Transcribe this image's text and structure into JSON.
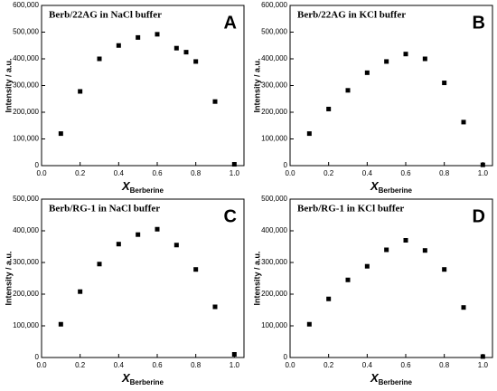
{
  "chart_data": [
    {
      "type": "scatter",
      "title": "Berb/22AG in NaCl buffer",
      "panel": "A",
      "xlabel": "X",
      "xlabel_sub": "Berberine",
      "ylabel": "Intensity / a.u.",
      "color": "#000000",
      "x": [
        0.1,
        0.2,
        0.3,
        0.4,
        0.5,
        0.6,
        0.7,
        0.75,
        0.8,
        0.9,
        1.0
      ],
      "values": [
        120000,
        278000,
        400000,
        450000,
        480000,
        492000,
        440000,
        425000,
        390000,
        240000,
        5000
      ],
      "xlim": [
        0,
        1.05
      ],
      "xticks": [
        {
          "value": 0,
          "label": "0.0"
        },
        0.2,
        0.4,
        0.6,
        0.8,
        {
          "value": 1,
          "label": "1.0"
        }
      ],
      "ylim": [
        0,
        600000
      ],
      "yticks": [
        0,
        {
          "value": 100000,
          "label": "100,000"
        },
        {
          "value": 200000,
          "label": "200,000"
        },
        {
          "value": 300000,
          "label": "300,000"
        },
        {
          "value": 400000,
          "label": "400,000"
        },
        {
          "value": 500000,
          "label": "500,000"
        },
        {
          "value": 600000,
          "label": "600,000"
        }
      ]
    },
    {
      "type": "scatter",
      "title": "Berb/22AG in KCl buffer",
      "panel": "B",
      "xlabel": "X",
      "xlabel_sub": "Berberine",
      "ylabel": "Intensity / a.u.",
      "color": "#000000",
      "x": [
        0.1,
        0.2,
        0.3,
        0.4,
        0.5,
        0.6,
        0.7,
        0.8,
        0.9,
        1.0
      ],
      "values": [
        120000,
        212000,
        282000,
        348000,
        390000,
        418000,
        400000,
        310000,
        163000,
        3000
      ],
      "xlim": [
        0,
        1.05
      ],
      "xticks": [
        {
          "value": 0,
          "label": "0.0"
        },
        0.2,
        0.4,
        0.6,
        0.8,
        {
          "value": 1,
          "label": "1.0"
        }
      ],
      "ylim": [
        0,
        600000
      ],
      "yticks": [
        0,
        {
          "value": 100000,
          "label": "100,000"
        },
        {
          "value": 200000,
          "label": "200,000"
        },
        {
          "value": 300000,
          "label": "300,000"
        },
        {
          "value": 400000,
          "label": "400,000"
        },
        {
          "value": 500000,
          "label": "500,000"
        },
        {
          "value": 600000,
          "label": "600,000"
        }
      ]
    },
    {
      "type": "scatter",
      "title": "Berb/RG-1 in NaCl buffer",
      "panel": "C",
      "xlabel": "X",
      "xlabel_sub": "Berberine",
      "ylabel": "Intensity / a.u.",
      "color": "#000000",
      "x": [
        0.1,
        0.2,
        0.3,
        0.4,
        0.5,
        0.6,
        0.7,
        0.8,
        0.9,
        1.0
      ],
      "values": [
        105000,
        208000,
        295000,
        358000,
        388000,
        405000,
        355000,
        278000,
        160000,
        10000
      ],
      "xlim": [
        0,
        1.05
      ],
      "xticks": [
        {
          "value": 0,
          "label": "0.0"
        },
        0.2,
        0.4,
        0.6,
        0.8,
        {
          "value": 1,
          "label": "1.0"
        }
      ],
      "ylim": [
        0,
        500000
      ],
      "yticks": [
        0,
        {
          "value": 100000,
          "label": "100,000"
        },
        {
          "value": 200000,
          "label": "200,000"
        },
        {
          "value": 300000,
          "label": "300,000"
        },
        {
          "value": 400000,
          "label": "400,000"
        },
        {
          "value": 500000,
          "label": "500,000"
        }
      ]
    },
    {
      "type": "scatter",
      "title": "Berb/RG-1 in KCl buffer",
      "panel": "D",
      "xlabel": "X",
      "xlabel_sub": "Berberine",
      "ylabel": "Intensity / a.u.",
      "color": "#000000",
      "x": [
        0.1,
        0.2,
        0.3,
        0.4,
        0.5,
        0.6,
        0.7,
        0.8,
        0.9,
        1.0
      ],
      "values": [
        105000,
        185000,
        245000,
        288000,
        340000,
        370000,
        338000,
        278000,
        158000,
        3000
      ],
      "xlim": [
        0,
        1.05
      ],
      "xticks": [
        {
          "value": 0,
          "label": "0.0"
        },
        0.2,
        0.4,
        0.6,
        0.8,
        {
          "value": 1,
          "label": "1.0"
        }
      ],
      "ylim": [
        0,
        500000
      ],
      "yticks": [
        0,
        {
          "value": 100000,
          "label": "100,000"
        },
        {
          "value": 200000,
          "label": "200,000"
        },
        {
          "value": 300000,
          "label": "300,000"
        },
        {
          "value": 400000,
          "label": "400,000"
        },
        {
          "value": 500000,
          "label": "500,000"
        }
      ]
    }
  ]
}
